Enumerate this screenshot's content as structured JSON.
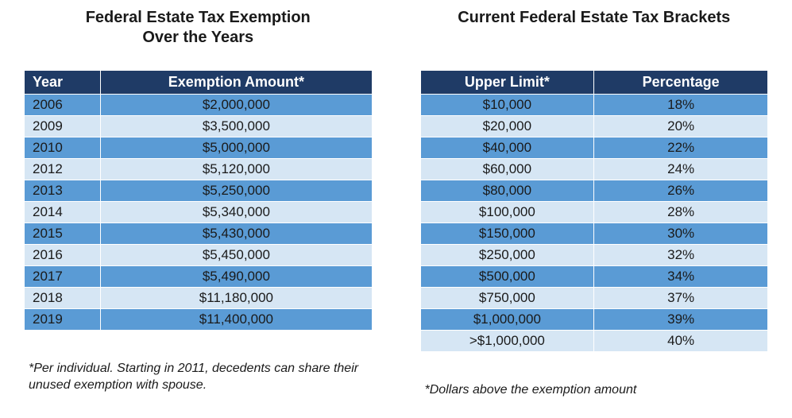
{
  "colors": {
    "header_bg": "#1f3b66",
    "row_dark": "#5a9bd5",
    "row_light": "#d6e6f4",
    "text": "#1a1a1a",
    "header_text": "#ffffff"
  },
  "left": {
    "title": "Federal Estate Tax Exemption\nOver the Years",
    "columns": [
      "Year",
      "Exemption Amount*"
    ],
    "rows": [
      [
        "2006",
        "$2,000,000"
      ],
      [
        "2009",
        "$3,500,000"
      ],
      [
        "2010",
        "$5,000,000"
      ],
      [
        "2012",
        "$5,120,000"
      ],
      [
        "2013",
        "$5,250,000"
      ],
      [
        "2014",
        "$5,340,000"
      ],
      [
        "2015",
        "$5,430,000"
      ],
      [
        "2016",
        "$5,450,000"
      ],
      [
        "2017",
        "$5,490,000"
      ],
      [
        "2018",
        "$11,180,000"
      ],
      [
        "2019",
        "$11,400,000"
      ]
    ],
    "footnote": "*Per individual. Starting in 2011, decedents can share their unused exemption with spouse."
  },
  "right": {
    "title": "Current Federal Estate Tax Brackets",
    "columns": [
      "Upper Limit*",
      "Percentage"
    ],
    "rows": [
      [
        "$10,000",
        "18%"
      ],
      [
        "$20,000",
        "20%"
      ],
      [
        "$40,000",
        "22%"
      ],
      [
        "$60,000",
        "24%"
      ],
      [
        "$80,000",
        "26%"
      ],
      [
        "$100,000",
        "28%"
      ],
      [
        "$150,000",
        "30%"
      ],
      [
        "$250,000",
        "32%"
      ],
      [
        "$500,000",
        "34%"
      ],
      [
        "$750,000",
        "37%"
      ],
      [
        "$1,000,000",
        "39%"
      ],
      [
        ">$1,000,000",
        "40%"
      ]
    ],
    "footnote": "*Dollars above the exemption amount"
  }
}
